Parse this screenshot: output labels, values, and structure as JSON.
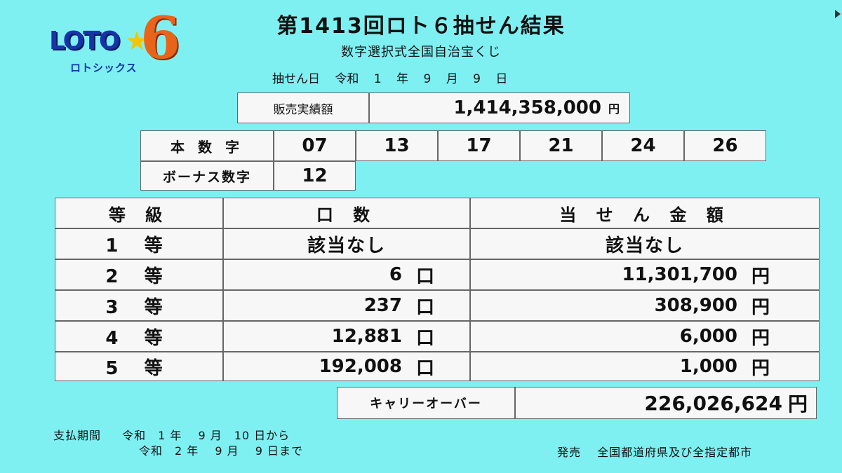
{
  "logo": {
    "main": "LOTO",
    "number": "6",
    "sub": "ロトシックス"
  },
  "title": "第1413回ロト６抽せん結果",
  "subtitle": "数字選択式全国自治宝くじ",
  "draw_date": {
    "label": "抽せん日",
    "era": "令和",
    "year": "1",
    "year_unit": "年",
    "month": "9",
    "month_unit": "月",
    "day": "9",
    "day_unit": "日"
  },
  "sales": {
    "label": "販売実績額",
    "value": "1,414,358,000",
    "unit": "円"
  },
  "numbers": {
    "main_label": "本 数 字",
    "main": [
      "07",
      "13",
      "17",
      "21",
      "24",
      "26"
    ],
    "bonus_label": "ボーナス数字",
    "bonus": "12"
  },
  "prizes": {
    "headers": [
      "等 級",
      "口 数",
      "当 せ ん 金 額"
    ],
    "rows": [
      {
        "rank": "1 等",
        "count": "該当なし",
        "count_unit": "",
        "amount": "該当なし",
        "amount_unit": ""
      },
      {
        "rank": "2 等",
        "count": "6",
        "count_unit": "口",
        "amount": "11,301,700",
        "amount_unit": "円"
      },
      {
        "rank": "3 等",
        "count": "237",
        "count_unit": "口",
        "amount": "308,900",
        "amount_unit": "円"
      },
      {
        "rank": "4 等",
        "count": "12,881",
        "count_unit": "口",
        "amount": "6,000",
        "amount_unit": "円"
      },
      {
        "rank": "5 等",
        "count": "192,008",
        "count_unit": "口",
        "amount": "1,000",
        "amount_unit": "円"
      }
    ]
  },
  "carryover": {
    "label": "キャリーオーバー",
    "value": "226,026,624",
    "unit": "円"
  },
  "payment": {
    "label": "支払期間",
    "line1": "令和　1 年　 9 月　10 日から",
    "line2": "令和　2 年　 9 月　 9 日まで"
  },
  "issuer": "発売　 全国都道府県及び全指定都市"
}
